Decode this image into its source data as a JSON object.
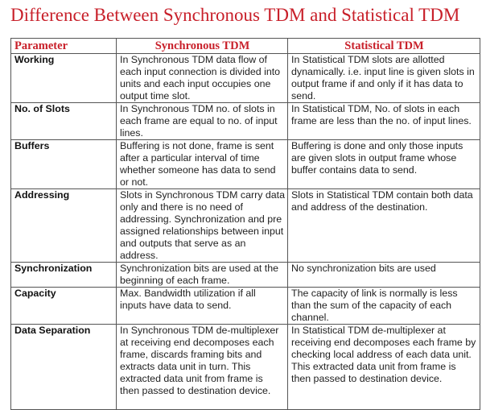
{
  "page_title": "Difference Between Synchronous TDM and Statistical TDM",
  "colors": {
    "title": "#c8202a",
    "header_text": "#c8202a",
    "border": "#555555"
  },
  "table": {
    "headers": [
      "Parameter",
      "Synchronous TDM",
      "Statistical TDM"
    ],
    "rows": [
      {
        "parameter": "Working",
        "synchronous": "In Synchronous TDM data flow of each input connection is divided into units and each input occupies one output time slot.",
        "statistical": "In Statistical TDM slots are allotted dynamically. i.e. input line is given slots in output frame if and only if it has data to send."
      },
      {
        "parameter": "No. of Slots",
        "synchronous": "In Synchronous TDM no. of slots in each frame are equal to no. of input lines.",
        "statistical": "In Statistical TDM, No. of slots in each frame are less than the no. of input lines."
      },
      {
        "parameter": "Buffers",
        "synchronous": "Buffering is not done, frame is sent after a particular interval of time whether someone has data to send or not.",
        "statistical": "Buffering is done and only those inputs are given slots in output frame whose buffer contains data to send."
      },
      {
        "parameter": "Addressing",
        "synchronous": "Slots in Synchronous TDM carry data only and there is no need of addressing. Synchronization and pre assigned relationships between input and outputs that serve as an address.",
        "statistical": "Slots in Statistical TDM contain both data and address of the destination."
      },
      {
        "parameter": "Synchronization",
        "synchronous": "Synchronization bits are used at the beginning of each frame.",
        "statistical": "No synchronization bits are used"
      },
      {
        "parameter": "Capacity",
        "synchronous": "Max. Bandwidth utilization if all inputs have data to send.",
        "statistical": "The capacity of link is normally is less than the sum of the capacity of each channel."
      },
      {
        "parameter": "Data Separation",
        "synchronous": "In Synchronous TDM de-multiplexer at receiving end decomposes each frame, discards framing bits and extracts data unit in turn. This extracted data unit from frame is then passed to destination device.",
        "statistical": "In Statistical TDM de-multiplexer at receiving end decomposes each frame by checking local address of each data unit. This extracted data unit from frame is then passed to destination device."
      }
    ]
  }
}
